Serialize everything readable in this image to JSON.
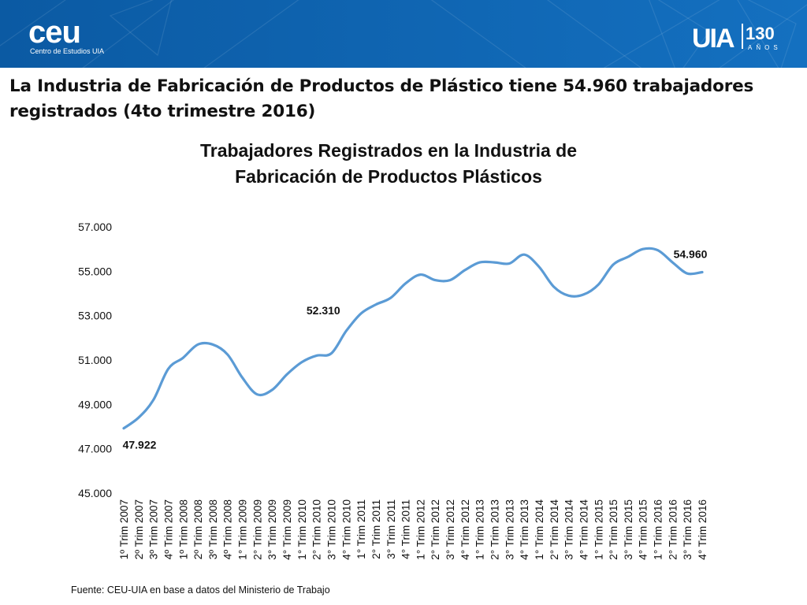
{
  "header": {
    "left_logo": {
      "name": "ceu",
      "subtitle": "Centro de Estudios UIA"
    },
    "right_logo": {
      "name": "UIA",
      "number": "130",
      "caption": "AÑOS"
    }
  },
  "headline": "La Industria de Fabricación de Productos de Plástico tiene 54.960 trabajadores registrados (4to trimestre 2016)",
  "source_note": "Fuente: CEU-UIA en base a datos del Ministerio de Trabajo",
  "colors": {
    "banner": "#0d5fa8",
    "line": "#5b9bd5",
    "text": "#111111"
  },
  "chart_data": {
    "type": "line",
    "title_lines": [
      "Trabajadores Registrados en la Industria de",
      "Fabricación de Productos Plásticos"
    ],
    "ylim": [
      45000,
      57000
    ],
    "yticks": [
      45000,
      47000,
      49000,
      51000,
      53000,
      55000,
      57000
    ],
    "ytick_labels": [
      "45.000",
      "47.000",
      "49.000",
      "51.000",
      "53.000",
      "55.000",
      "57.000"
    ],
    "grid": false,
    "categories": [
      "1º Trim 2007",
      "2º Trim 2007",
      "3º Trim 2007",
      "4º Trim 2007",
      "1º Trim 2008",
      "2º Trim 2008",
      "3º Trim 2008",
      "4º Trim 2008",
      "1° Trim 2009",
      "2° Trim 2009",
      "3° Trim 2009",
      "4° Trim 2009",
      "1° Trim 2010",
      "2° Trim 2010",
      "3° Trim 2010",
      "4° Trim 2010",
      "1° Trim 2011",
      "2° Trim 2011",
      "3° Trim 2011",
      "4° Trim 2011",
      "1° Trim 2012",
      "2° Trim 2012",
      "3° Trim 2012",
      "4° Trim 2012",
      "1° Trim 2013",
      "2° Trim 2013",
      "3° Trim 2013",
      "4° Trim 2013",
      "1° Trim 2014",
      "2° Trim 2014",
      "3° Trim 2014",
      "4° Trim 2014",
      "1° Trim 2015",
      "2° Trim 2015",
      "3° Trim 2015",
      "4° Trim 2015",
      "1° Trim 2016",
      "2° Trim 2016",
      "3° Trim 2016",
      "4° Trim 2016"
    ],
    "values": [
      47922,
      48400,
      49200,
      50600,
      51100,
      51700,
      51700,
      51250,
      50200,
      49450,
      49650,
      50350,
      50900,
      51200,
      51300,
      52310,
      53100,
      53500,
      53800,
      54450,
      54850,
      54600,
      54600,
      55050,
      55400,
      55400,
      55350,
      55750,
      55200,
      54300,
      53900,
      53950,
      54400,
      55300,
      55650,
      56000,
      55950,
      55400,
      54900,
      54960
    ],
    "data_labels": [
      {
        "index": 0,
        "text": "47.922"
      },
      {
        "index": 15,
        "text": "52.310"
      },
      {
        "index": 39,
        "text": "54.960"
      }
    ]
  }
}
